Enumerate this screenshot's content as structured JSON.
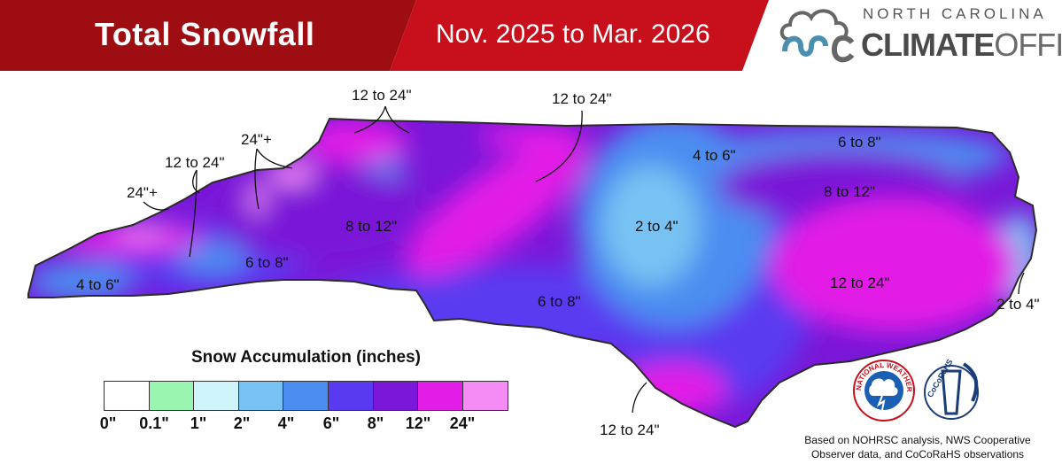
{
  "header": {
    "title": "Total Snowfall",
    "subtitle": "Nov. 2025 to Mar. 2026",
    "logo_line1": "NORTH CAROLINA",
    "logo_climate": "CLIMATE",
    "logo_office": "OFFICE",
    "colors": {
      "dark_red": "#9e0d12",
      "red": "#c8101c"
    }
  },
  "map_labels": [
    "12 to 24\"",
    "12 to 24\"",
    "24\"+",
    "12 to 24\"",
    "24\"+",
    "4 to 6\"",
    "6 to 8\"",
    "8 to 12\"",
    "4 to 6\"",
    "6 to 8\"",
    "8 to 12\"",
    "2 to 4\"",
    "12 to 24\"",
    "2 to 4\"",
    "6 to 8\"",
    "12 to 24\""
  ],
  "legend": {
    "title": "Snow Accumulation (inches)",
    "colors": [
      "#ffffff",
      "#99f5b0",
      "#cff4fb",
      "#78c2f3",
      "#4b8df0",
      "#5a3af0",
      "#7a17d8",
      "#e21de6",
      "#f58cf6"
    ],
    "ticks": [
      "0\"",
      "0.1\"",
      "1\"",
      "2\"",
      "4\"",
      "6\"",
      "8\"",
      "12\"",
      "24\""
    ]
  },
  "logos": {
    "nws": "NATIONAL WEATHER SERVICE",
    "cocorahs": "CoCoRaHS"
  },
  "source": "Based on NOHRSC analysis, NWS Cooperative Observer data, and CoCoRaHS observations"
}
